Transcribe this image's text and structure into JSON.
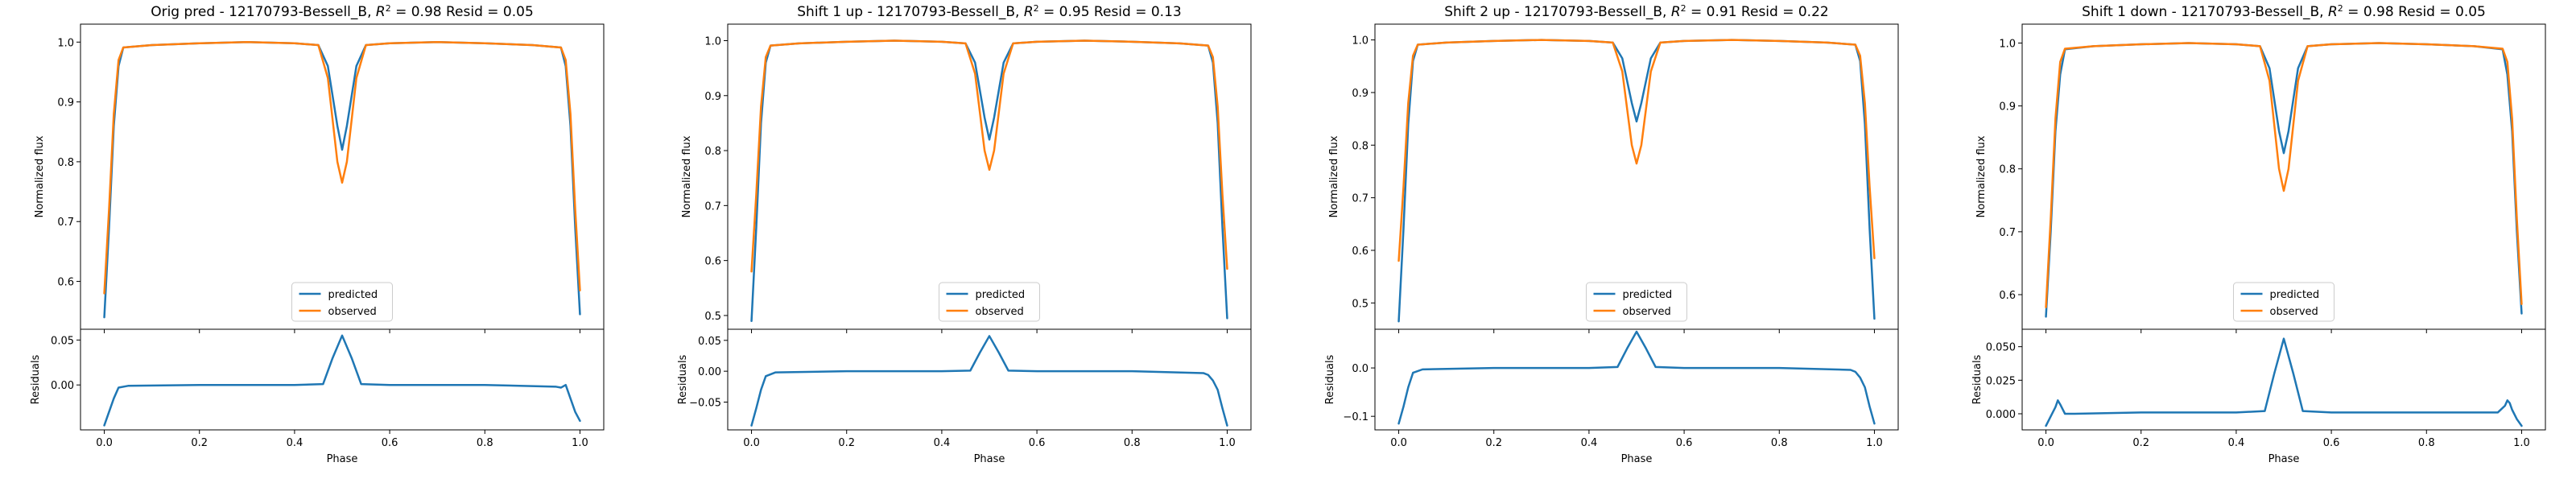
{
  "colors": {
    "predicted": "#1f77b4",
    "observed": "#ff7f0e",
    "axes": "#000000",
    "background": "#ffffff"
  },
  "chart_data": [
    {
      "type": "line",
      "title_prefix": "Orig pred - 12170793-Bessell_B, ",
      "title_r2_sym": "R",
      "title_r2_exp": "2",
      "title_r2_eq": " = 0.98",
      "title_suffix": " Resid = 0.05",
      "xlabel": "Phase",
      "ylabel_top": "Normalized flux",
      "ylabel_bottom": "Residuals",
      "xlim": [
        -0.05,
        1.05
      ],
      "xticks": [
        0.0,
        0.2,
        0.4,
        0.6,
        0.8,
        1.0
      ],
      "xtick_labels": [
        "0.0",
        "0.2",
        "0.4",
        "0.6",
        "0.8",
        "1.0"
      ],
      "top": {
        "ylim": [
          0.52,
          1.03
        ],
        "yticks": [
          0.6,
          0.7,
          0.8,
          0.9,
          1.0
        ],
        "ytick_labels": [
          "0.6",
          "0.7",
          "0.8",
          "0.9",
          "1.0"
        ]
      },
      "bottom": {
        "ylim": [
          -0.05,
          0.062
        ],
        "yticks": [
          0.0,
          0.05
        ],
        "ytick_labels": [
          "0.00",
          "0.05"
        ]
      },
      "legend": {
        "loc": "lower center",
        "entries": [
          "predicted",
          "observed"
        ]
      },
      "series": [
        {
          "name": "predicted",
          "color": "#1f77b4",
          "x": [
            0.0,
            0.01,
            0.02,
            0.03,
            0.04,
            0.1,
            0.2,
            0.3,
            0.4,
            0.45,
            0.47,
            0.49,
            0.5,
            0.51,
            0.53,
            0.55,
            0.6,
            0.7,
            0.8,
            0.9,
            0.96,
            0.97,
            0.98,
            0.99,
            1.0
          ],
          "y": [
            0.54,
            0.69,
            0.86,
            0.96,
            0.991,
            0.995,
            0.998,
            1.0,
            0.998,
            0.995,
            0.96,
            0.86,
            0.82,
            0.86,
            0.96,
            0.995,
            0.998,
            1.0,
            0.998,
            0.995,
            0.991,
            0.96,
            0.86,
            0.69,
            0.545
          ]
        },
        {
          "name": "observed",
          "color": "#ff7f0e",
          "x": [
            0.0,
            0.01,
            0.02,
            0.03,
            0.04,
            0.1,
            0.2,
            0.3,
            0.4,
            0.45,
            0.47,
            0.49,
            0.5,
            0.51,
            0.53,
            0.55,
            0.6,
            0.7,
            0.8,
            0.9,
            0.96,
            0.97,
            0.98,
            0.99,
            1.0
          ],
          "y": [
            0.58,
            0.72,
            0.88,
            0.97,
            0.991,
            0.995,
            0.998,
            1.0,
            0.998,
            0.995,
            0.94,
            0.8,
            0.765,
            0.8,
            0.94,
            0.995,
            0.998,
            1.0,
            0.998,
            0.995,
            0.991,
            0.97,
            0.88,
            0.72,
            0.585
          ]
        },
        {
          "name": "residuals",
          "color": "#1f77b4",
          "x": [
            0.0,
            0.01,
            0.02,
            0.03,
            0.05,
            0.2,
            0.4,
            0.46,
            0.48,
            0.5,
            0.52,
            0.54,
            0.6,
            0.8,
            0.95,
            0.96,
            0.97,
            0.98,
            0.99,
            1.0
          ],
          "y": [
            -0.045,
            -0.03,
            -0.015,
            -0.003,
            -0.001,
            0.0,
            0.0,
            0.001,
            0.03,
            0.055,
            0.03,
            0.001,
            0.0,
            0.0,
            -0.002,
            -0.003,
            0.0,
            -0.015,
            -0.03,
            -0.04
          ]
        }
      ]
    },
    {
      "type": "line",
      "title_prefix": "Shift 1 up - 12170793-Bessell_B, ",
      "title_r2_sym": "R",
      "title_r2_exp": "2",
      "title_r2_eq": " = 0.95",
      "title_suffix": " Resid = 0.13",
      "xlabel": "Phase",
      "ylabel_top": "Normalized flux",
      "ylabel_bottom": "Residuals",
      "xlim": [
        -0.05,
        1.05
      ],
      "xticks": [
        0.0,
        0.2,
        0.4,
        0.6,
        0.8,
        1.0
      ],
      "xtick_labels": [
        "0.0",
        "0.2",
        "0.4",
        "0.6",
        "0.8",
        "1.0"
      ],
      "top": {
        "ylim": [
          0.475,
          1.03
        ],
        "yticks": [
          0.5,
          0.6,
          0.7,
          0.8,
          0.9,
          1.0
        ],
        "ytick_labels": [
          "0.5",
          "0.6",
          "0.7",
          "0.8",
          "0.9",
          "1.0"
        ]
      },
      "bottom": {
        "ylim": [
          -0.095,
          0.068
        ],
        "yticks": [
          -0.05,
          0.0,
          0.05
        ],
        "ytick_labels": [
          "−0.05",
          "0.00",
          "0.05"
        ]
      },
      "legend": {
        "loc": "lower center",
        "entries": [
          "predicted",
          "observed"
        ]
      },
      "series": [
        {
          "name": "predicted",
          "color": "#1f77b4",
          "x": [
            0.0,
            0.01,
            0.02,
            0.03,
            0.04,
            0.1,
            0.2,
            0.3,
            0.4,
            0.45,
            0.47,
            0.49,
            0.5,
            0.51,
            0.53,
            0.55,
            0.6,
            0.7,
            0.8,
            0.9,
            0.96,
            0.97,
            0.98,
            0.99,
            1.0
          ],
          "y": [
            0.49,
            0.66,
            0.85,
            0.96,
            0.991,
            0.995,
            0.998,
            1.0,
            0.998,
            0.995,
            0.96,
            0.86,
            0.82,
            0.86,
            0.96,
            0.995,
            0.998,
            1.0,
            0.998,
            0.995,
            0.991,
            0.96,
            0.85,
            0.66,
            0.495
          ]
        },
        {
          "name": "observed",
          "color": "#ff7f0e",
          "x": [
            0.0,
            0.01,
            0.02,
            0.03,
            0.04,
            0.1,
            0.2,
            0.3,
            0.4,
            0.45,
            0.47,
            0.49,
            0.5,
            0.51,
            0.53,
            0.55,
            0.6,
            0.7,
            0.8,
            0.9,
            0.96,
            0.97,
            0.98,
            0.99,
            1.0
          ],
          "y": [
            0.58,
            0.72,
            0.88,
            0.97,
            0.991,
            0.995,
            0.998,
            1.0,
            0.998,
            0.995,
            0.94,
            0.8,
            0.765,
            0.8,
            0.94,
            0.995,
            0.998,
            1.0,
            0.998,
            0.995,
            0.991,
            0.97,
            0.88,
            0.72,
            0.585
          ]
        },
        {
          "name": "residuals",
          "color": "#1f77b4",
          "x": [
            0.0,
            0.01,
            0.02,
            0.03,
            0.05,
            0.2,
            0.4,
            0.46,
            0.48,
            0.5,
            0.52,
            0.54,
            0.6,
            0.8,
            0.95,
            0.96,
            0.97,
            0.98,
            0.99,
            1.0
          ],
          "y": [
            -0.088,
            -0.06,
            -0.03,
            -0.008,
            -0.002,
            0.0,
            0.0,
            0.001,
            0.03,
            0.057,
            0.03,
            0.001,
            0.0,
            0.0,
            -0.003,
            -0.006,
            -0.015,
            -0.03,
            -0.06,
            -0.088
          ]
        }
      ]
    },
    {
      "type": "line",
      "title_prefix": "Shift 2 up - 12170793-Bessell_B, ",
      "title_r2_sym": "R",
      "title_r2_exp": "2",
      "title_r2_eq": " = 0.91",
      "title_suffix": " Resid = 0.22",
      "xlabel": "Phase",
      "ylabel_top": "Normalized flux",
      "ylabel_bottom": "Residuals",
      "xlim": [
        -0.05,
        1.05
      ],
      "xticks": [
        0.0,
        0.2,
        0.4,
        0.6,
        0.8,
        1.0
      ],
      "xtick_labels": [
        "0.0",
        "0.2",
        "0.4",
        "0.6",
        "0.8",
        "1.0"
      ],
      "top": {
        "ylim": [
          0.45,
          1.03
        ],
        "yticks": [
          0.5,
          0.6,
          0.7,
          0.8,
          0.9,
          1.0
        ],
        "ytick_labels": [
          "0.5",
          "0.6",
          "0.7",
          "0.8",
          "0.9",
          "1.0"
        ]
      },
      "bottom": {
        "ylim": [
          -0.128,
          0.08
        ],
        "yticks": [
          -0.1,
          0.0
        ],
        "ytick_labels": [
          "−0.1",
          "0.0"
        ]
      },
      "legend": {
        "loc": "lower center",
        "entries": [
          "predicted",
          "observed"
        ]
      },
      "series": [
        {
          "name": "predicted",
          "color": "#1f77b4",
          "x": [
            0.0,
            0.01,
            0.02,
            0.03,
            0.04,
            0.1,
            0.2,
            0.3,
            0.4,
            0.45,
            0.47,
            0.49,
            0.5,
            0.51,
            0.53,
            0.55,
            0.6,
            0.7,
            0.8,
            0.9,
            0.96,
            0.97,
            0.98,
            0.99,
            1.0
          ],
          "y": [
            0.465,
            0.64,
            0.84,
            0.96,
            0.991,
            0.995,
            0.998,
            1.0,
            0.998,
            0.995,
            0.965,
            0.88,
            0.845,
            0.88,
            0.965,
            0.995,
            0.998,
            1.0,
            0.998,
            0.995,
            0.991,
            0.96,
            0.84,
            0.64,
            0.47
          ]
        },
        {
          "name": "observed",
          "color": "#ff7f0e",
          "x": [
            0.0,
            0.01,
            0.02,
            0.03,
            0.04,
            0.1,
            0.2,
            0.3,
            0.4,
            0.45,
            0.47,
            0.49,
            0.5,
            0.51,
            0.53,
            0.55,
            0.6,
            0.7,
            0.8,
            0.9,
            0.96,
            0.97,
            0.98,
            0.99,
            1.0
          ],
          "y": [
            0.58,
            0.72,
            0.88,
            0.97,
            0.991,
            0.995,
            0.998,
            1.0,
            0.998,
            0.995,
            0.94,
            0.8,
            0.765,
            0.8,
            0.94,
            0.995,
            0.998,
            1.0,
            0.998,
            0.995,
            0.991,
            0.97,
            0.88,
            0.72,
            0.585
          ]
        },
        {
          "name": "residuals",
          "color": "#1f77b4",
          "x": [
            0.0,
            0.01,
            0.02,
            0.03,
            0.05,
            0.2,
            0.4,
            0.46,
            0.48,
            0.5,
            0.52,
            0.54,
            0.6,
            0.8,
            0.95,
            0.96,
            0.97,
            0.98,
            0.99,
            1.0
          ],
          "y": [
            -0.115,
            -0.08,
            -0.04,
            -0.01,
            -0.003,
            0.0,
            0.0,
            0.002,
            0.04,
            0.075,
            0.04,
            0.002,
            0.0,
            0.0,
            -0.004,
            -0.008,
            -0.02,
            -0.04,
            -0.08,
            -0.115
          ]
        }
      ]
    },
    {
      "type": "line",
      "title_prefix": "Shift 1 down - 12170793-Bessell_B, ",
      "title_r2_sym": "R",
      "title_r2_exp": "2",
      "title_r2_eq": " = 0.98",
      "title_suffix": " Resid = 0.05",
      "xlabel": "Phase",
      "ylabel_top": "Normalized flux",
      "ylabel_bottom": "Residuals",
      "xlim": [
        -0.05,
        1.05
      ],
      "xticks": [
        0.0,
        0.2,
        0.4,
        0.6,
        0.8,
        1.0
      ],
      "xtick_labels": [
        "0.0",
        "0.2",
        "0.4",
        "0.6",
        "0.8",
        "1.0"
      ],
      "top": {
        "ylim": [
          0.545,
          1.03
        ],
        "yticks": [
          0.6,
          0.7,
          0.8,
          0.9,
          1.0
        ],
        "ytick_labels": [
          "0.6",
          "0.7",
          "0.8",
          "0.9",
          "1.0"
        ]
      },
      "bottom": {
        "ylim": [
          -0.012,
          0.063
        ],
        "yticks": [
          0.0,
          0.025,
          0.05
        ],
        "ytick_labels": [
          "0.000",
          "0.025",
          "0.050"
        ]
      },
      "legend": {
        "loc": "lower center",
        "entries": [
          "predicted",
          "observed"
        ]
      },
      "series": [
        {
          "name": "predicted",
          "color": "#1f77b4",
          "x": [
            0.0,
            0.01,
            0.02,
            0.03,
            0.04,
            0.1,
            0.2,
            0.3,
            0.4,
            0.45,
            0.47,
            0.49,
            0.5,
            0.51,
            0.53,
            0.55,
            0.6,
            0.7,
            0.8,
            0.9,
            0.96,
            0.97,
            0.98,
            0.99,
            1.0
          ],
          "y": [
            0.565,
            0.7,
            0.86,
            0.95,
            0.99,
            0.995,
            0.998,
            1.0,
            0.998,
            0.995,
            0.96,
            0.86,
            0.825,
            0.86,
            0.96,
            0.995,
            0.998,
            1.0,
            0.998,
            0.995,
            0.99,
            0.95,
            0.86,
            0.7,
            0.57
          ]
        },
        {
          "name": "observed",
          "color": "#ff7f0e",
          "x": [
            0.0,
            0.01,
            0.02,
            0.03,
            0.04,
            0.1,
            0.2,
            0.3,
            0.4,
            0.45,
            0.47,
            0.49,
            0.5,
            0.51,
            0.53,
            0.55,
            0.6,
            0.7,
            0.8,
            0.9,
            0.96,
            0.97,
            0.98,
            0.99,
            1.0
          ],
          "y": [
            0.58,
            0.72,
            0.88,
            0.97,
            0.991,
            0.995,
            0.998,
            1.0,
            0.998,
            0.995,
            0.94,
            0.8,
            0.765,
            0.8,
            0.94,
            0.995,
            0.998,
            1.0,
            0.998,
            0.995,
            0.991,
            0.97,
            0.88,
            0.72,
            0.585
          ]
        },
        {
          "name": "residuals",
          "color": "#1f77b4",
          "x": [
            0.0,
            0.01,
            0.02,
            0.025,
            0.03,
            0.04,
            0.06,
            0.2,
            0.4,
            0.46,
            0.48,
            0.5,
            0.52,
            0.54,
            0.6,
            0.8,
            0.95,
            0.965,
            0.97,
            0.975,
            0.98,
            0.99,
            1.0
          ],
          "y": [
            -0.009,
            -0.002,
            0.005,
            0.01,
            0.007,
            0.0,
            0.0,
            0.001,
            0.001,
            0.002,
            0.03,
            0.056,
            0.03,
            0.002,
            0.001,
            0.001,
            0.001,
            0.006,
            0.01,
            0.008,
            0.003,
            -0.004,
            -0.009
          ]
        }
      ]
    }
  ]
}
